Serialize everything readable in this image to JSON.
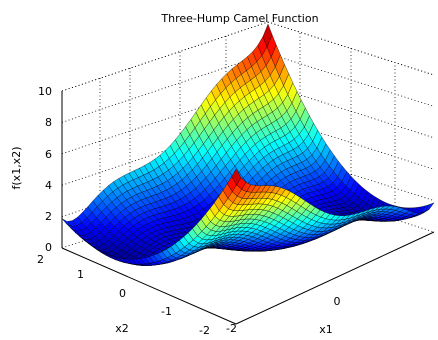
{
  "chart_data": {
    "type": "surface",
    "title": "Three-Hump Camel Function",
    "xlabel": "x1",
    "ylabel": "x2",
    "zlabel": "f(x1,x2)",
    "function": "f(x1,x2) = 2*x1^2 - 1.05*x1^4 + x1^6/6 + x1*x2 + x2^2",
    "xlim": [
      -2,
      2
    ],
    "ylim": [
      -2,
      2
    ],
    "zlim": [
      0,
      10
    ],
    "x_ticks": [
      "-2",
      "0"
    ],
    "y_ticks": [
      "2",
      "1",
      "0",
      "-1",
      "-2"
    ],
    "z_ticks": [
      "0",
      "2",
      "4",
      "6",
      "8",
      "10"
    ],
    "colormap": "jet",
    "grid": true,
    "view": "3d-perspective"
  }
}
